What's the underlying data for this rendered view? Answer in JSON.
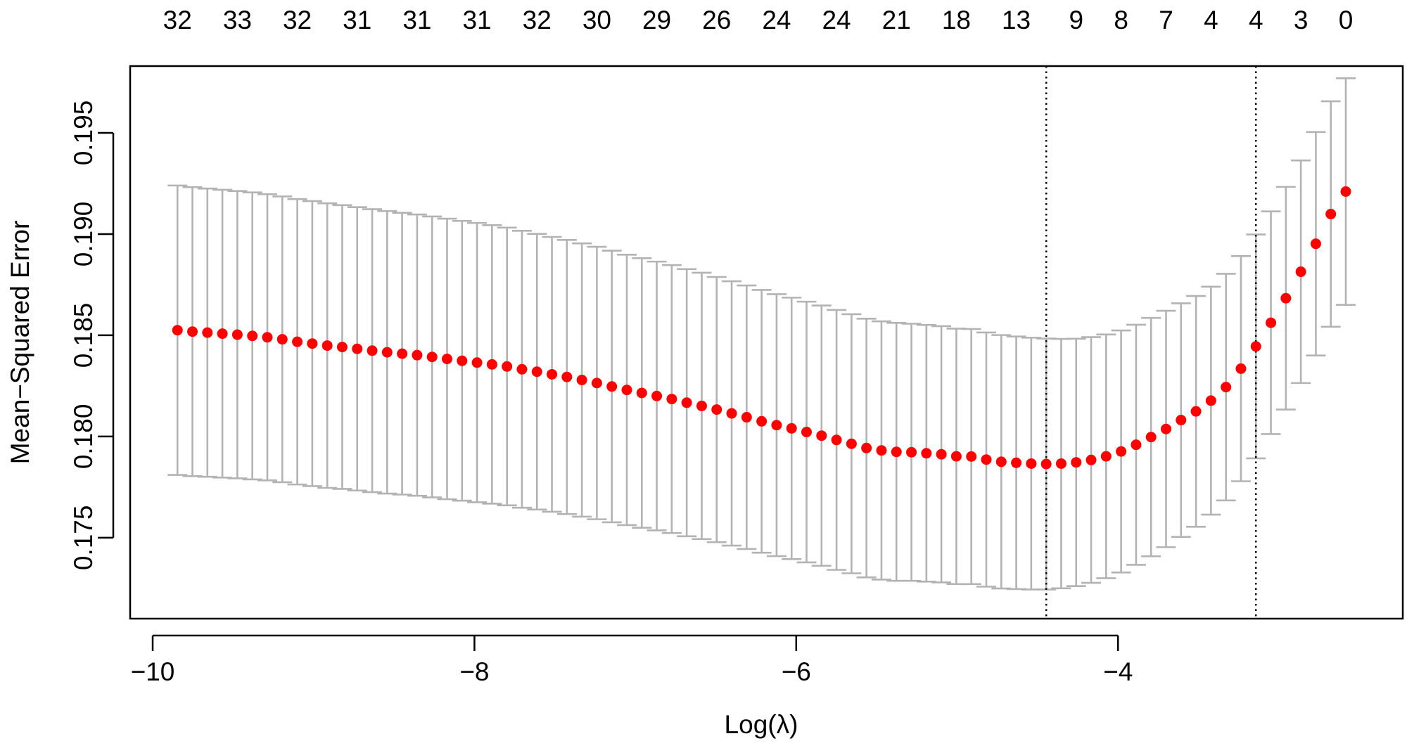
{
  "chart_data": {
    "type": "scatter",
    "subtype": "cross-validation error plot with error bars",
    "title": "",
    "xlabel": "Log(λ)",
    "ylabel": "Mean−Squared Error",
    "xlim": [
      -10.14,
      -2.23
    ],
    "ylim": [
      0.171,
      0.1983
    ],
    "x_ticks": [
      -10,
      -8,
      -6,
      -4
    ],
    "x_tick_labels": [
      "−10",
      "−8",
      "−6",
      "−4"
    ],
    "y_ticks": [
      0.175,
      0.18,
      0.185,
      0.19,
      0.195
    ],
    "y_tick_labels": [
      "0.175",
      "0.180",
      "0.185",
      "0.190",
      "0.195"
    ],
    "log_lambda_start": -9.846,
    "log_lambda_step": 0.0931,
    "mse": [
      0.18525,
      0.18518,
      0.18513,
      0.18508,
      0.18503,
      0.18497,
      0.1849,
      0.1848,
      0.18468,
      0.18459,
      0.18449,
      0.18442,
      0.18433,
      0.18424,
      0.18416,
      0.18409,
      0.18402,
      0.18393,
      0.18383,
      0.18374,
      0.18365,
      0.18356,
      0.18346,
      0.18332,
      0.1832,
      0.18307,
      0.18294,
      0.18279,
      0.18264,
      0.18247,
      0.1823,
      0.18215,
      0.182,
      0.18185,
      0.18167,
      0.18151,
      0.18133,
      0.18114,
      0.18095,
      0.18075,
      0.18056,
      0.1804,
      0.18022,
      0.18004,
      0.17983,
      0.17964,
      0.17943,
      0.17931,
      0.17924,
      0.17922,
      0.17917,
      0.17912,
      0.17902,
      0.17901,
      0.17886,
      0.17875,
      0.1787,
      0.17866,
      0.17864,
      0.17866,
      0.17872,
      0.17884,
      0.17902,
      0.17926,
      0.17959,
      0.17997,
      0.18037,
      0.18081,
      0.18124,
      0.18177,
      0.18244,
      0.18335,
      0.18445,
      0.18562,
      0.18683,
      0.18814,
      0.18952,
      0.19099,
      0.1921
    ],
    "se": [
      0.00715,
      0.00714,
      0.00712,
      0.00711,
      0.0071,
      0.00709,
      0.00707,
      0.00706,
      0.00705,
      0.00704,
      0.00703,
      0.00701,
      0.007,
      0.00699,
      0.00698,
      0.00696,
      0.00695,
      0.00694,
      0.00693,
      0.00691,
      0.0069,
      0.00688,
      0.00686,
      0.00684,
      0.00681,
      0.00679,
      0.00677,
      0.00675,
      0.00673,
      0.00671,
      0.00668,
      0.00666,
      0.00664,
      0.00662,
      0.0066,
      0.00658,
      0.00655,
      0.00653,
      0.00651,
      0.00649,
      0.00647,
      0.00646,
      0.00644,
      0.00643,
      0.00642,
      0.0064,
      0.00639,
      0.00638,
      0.00637,
      0.00635,
      0.00634,
      0.00633,
      0.00631,
      0.0063,
      0.00628,
      0.00626,
      0.00624,
      0.00622,
      0.0062,
      0.00616,
      0.00611,
      0.00607,
      0.00602,
      0.00598,
      0.00593,
      0.00589,
      0.00584,
      0.00577,
      0.0057,
      0.00563,
      0.0056,
      0.00556,
      0.00553,
      0.0055,
      0.0055,
      0.0055,
      0.00552,
      0.00557,
      0.0056
    ],
    "lambda_min_log": -4.446,
    "lambda_1se_log": -3.143,
    "top_axis": {
      "point_indices": [
        0,
        4,
        8,
        12,
        16,
        20,
        24,
        28,
        32,
        36,
        40,
        44,
        48,
        52,
        56,
        60,
        63,
        66,
        69,
        72,
        75,
        78
      ],
      "labels": [
        "32",
        "33",
        "32",
        "31",
        "31",
        "31",
        "32",
        "30",
        "29",
        "26",
        "24",
        "24",
        "21",
        "18",
        "13",
        "9",
        "8",
        "7",
        "4",
        "4",
        "3",
        "0"
      ]
    },
    "colors": {
      "points": "#ff0000",
      "error_bars": "#b3b3b3",
      "ref_lines": "#000000"
    },
    "grid": false,
    "legend": "none"
  }
}
